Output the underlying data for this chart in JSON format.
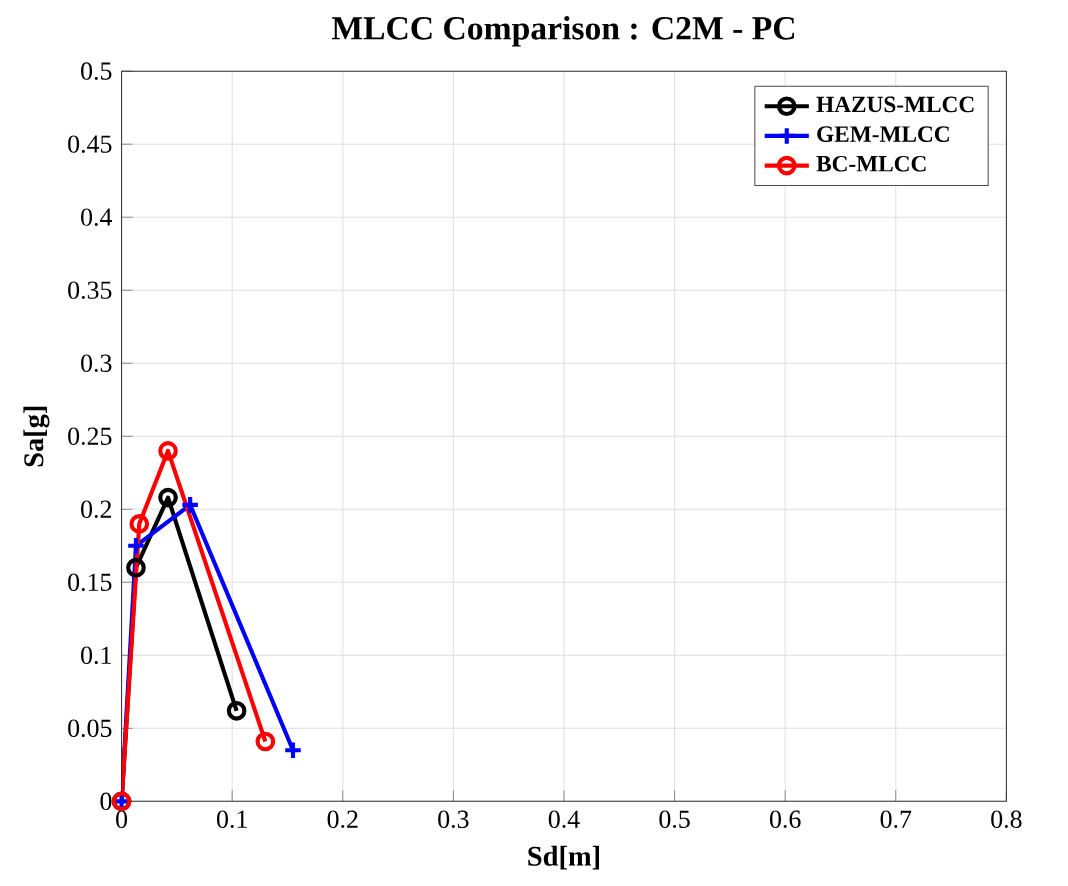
{
  "chart_data": {
    "type": "line",
    "title": "MLCC Comparison : C2M - PC",
    "xlabel": "Sd[m]",
    "ylabel": "Sa[g]",
    "xlim": [
      0,
      0.8
    ],
    "xticks": [
      0,
      0.1,
      0.2,
      0.3,
      0.4,
      0.5,
      0.6,
      0.7,
      0.8
    ],
    "ylim": [
      0,
      0.5
    ],
    "yticks": [
      0,
      0.05,
      0.1,
      0.15,
      0.2,
      0.25,
      0.3,
      0.35,
      0.4,
      0.45,
      0.5
    ],
    "grid": true,
    "legend": "top right",
    "series": [
      {
        "name": "HAZUS-MLCC",
        "color": "#000000",
        "marker": "circle",
        "x": [
          0,
          0.013,
          0.042,
          0.104
        ],
        "values": [
          0,
          0.16,
          0.208,
          0.062
        ]
      },
      {
        "name": "GEM-MLCC",
        "color": "#0000ff",
        "marker": "cross",
        "x": [
          0,
          0.013,
          0.062,
          0.155
        ],
        "values": [
          0,
          0.175,
          0.203,
          0.035
        ]
      },
      {
        "name": "BC-MLCC",
        "color": "#ff0000",
        "marker": "circle",
        "x": [
          0,
          0.016,
          0.042,
          0.13
        ],
        "values": [
          0,
          0.19,
          0.24,
          0.041
        ]
      }
    ]
  }
}
